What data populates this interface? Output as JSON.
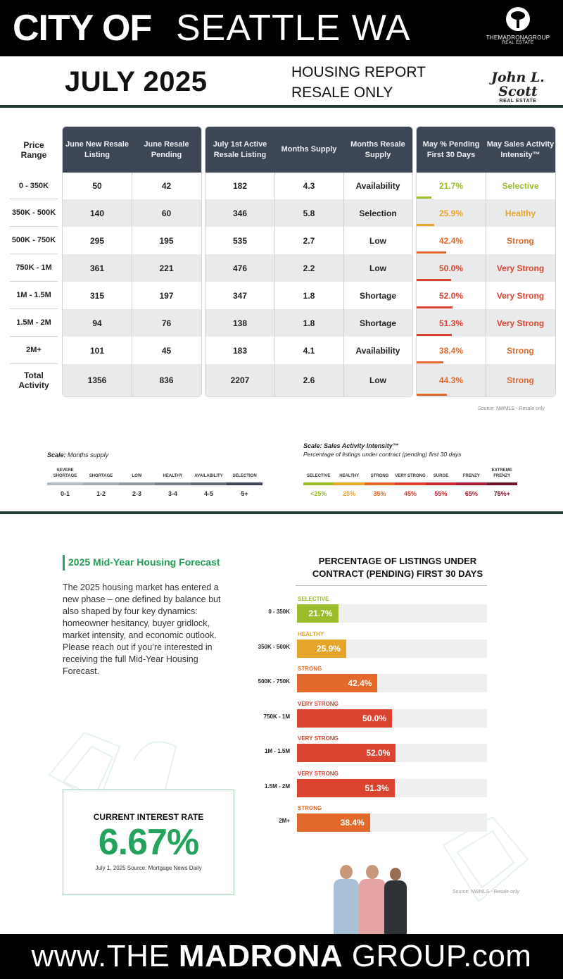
{
  "header": {
    "city_bold": "CITY OF",
    "city_rest": "SEATTLE WA",
    "logo_name": "THEMADRONAGROUP",
    "logo_sub": "REAL ESTATE"
  },
  "subheader": {
    "month": "JULY 2025",
    "report_line1": "HOUSING REPORT",
    "report_line2": "RESALE ONLY",
    "brand": "John L. Scott",
    "brand_sub": "REAL ESTATE"
  },
  "table": {
    "headers": {
      "price": "Price Range",
      "june_new": "June New Resale Listing",
      "june_pending": "June Resale Pending",
      "july_active": "July 1st Active Resale Listing",
      "months_supply": "Months Supply",
      "months_resale": "Months Resale Supply",
      "may_pct": "May % Pending First 30 Days",
      "may_intensity": "May Sales Activity Intensity™"
    },
    "rows": [
      {
        "range": "0 - 350K",
        "june_new": "50",
        "june_pending": "42",
        "july_active": "182",
        "months": "4.3",
        "resale": "Availability",
        "pct": "21.7%",
        "intensity": "Selective",
        "color": "#9bbd2b",
        "barfrac": 0.217
      },
      {
        "range": "350K - 500K",
        "june_new": "140",
        "june_pending": "60",
        "july_active": "346",
        "months": "5.8",
        "resale": "Selection",
        "pct": "25.9%",
        "intensity": "Healthy",
        "color": "#e5a52b",
        "barfrac": 0.259
      },
      {
        "range": "500K - 750K",
        "june_new": "295",
        "june_pending": "195",
        "july_active": "535",
        "months": "2.7",
        "resale": "Low",
        "pct": "42.4%",
        "intensity": "Strong",
        "color": "#e2692a",
        "barfrac": 0.424
      },
      {
        "range": "750K - 1M",
        "june_new": "361",
        "june_pending": "221",
        "july_active": "476",
        "months": "2.2",
        "resale": "Low",
        "pct": "50.0%",
        "intensity": "Very Strong",
        "color": "#d9432f",
        "barfrac": 0.5
      },
      {
        "range": "1M - 1.5M",
        "june_new": "315",
        "june_pending": "197",
        "july_active": "347",
        "months": "1.8",
        "resale": "Shortage",
        "pct": "52.0%",
        "intensity": "Very Strong",
        "color": "#d9432f",
        "barfrac": 0.52
      },
      {
        "range": "1.5M - 2M",
        "june_new": "94",
        "june_pending": "76",
        "july_active": "138",
        "months": "1.8",
        "resale": "Shortage",
        "pct": "51.3%",
        "intensity": "Very Strong",
        "color": "#d9432f",
        "barfrac": 0.513
      },
      {
        "range": "2M+",
        "june_new": "101",
        "june_pending": "45",
        "july_active": "183",
        "months": "4.1",
        "resale": "Availability",
        "pct": "38.4%",
        "intensity": "Strong",
        "color": "#e2692a",
        "barfrac": 0.384
      },
      {
        "range": "Total Activity",
        "june_new": "1356",
        "june_pending": "836",
        "july_active": "2207",
        "months": "2.6",
        "resale": "Low",
        "pct": "44.3%",
        "intensity": "Strong",
        "color": "#e2692a",
        "barfrac": 0.443
      }
    ],
    "source": "Source: NWMLS - Resale only"
  },
  "scale_supply": {
    "title_bold": "Scale:",
    "title_rest": "Months supply",
    "items": [
      {
        "label": "SEVERE SHORTAGE",
        "value": "0-1",
        "color": "#b5bcc4"
      },
      {
        "label": "SHORTAGE",
        "value": "1-2",
        "color": "#a3aab2"
      },
      {
        "label": "LOW",
        "value": "2-3",
        "color": "#8f96a0"
      },
      {
        "label": "HEALTHY",
        "value": "3-4",
        "color": "#78808b"
      },
      {
        "label": "AVAILABILITY",
        "value": "4-5",
        "color": "#5f6874"
      },
      {
        "label": "SELECTION",
        "value": "5+",
        "color": "#3c4654"
      }
    ]
  },
  "scale_intensity": {
    "title_bold": "Scale:",
    "title_rest": "Sales Activity Intensity™",
    "subtitle": "Percentage of listings under contract (pending) first 30 days",
    "items": [
      {
        "label": "SELECTIVE",
        "value": "<25%",
        "color": "#9bbd2b"
      },
      {
        "label": "HEALTHY",
        "value": "25%",
        "color": "#e5a52b"
      },
      {
        "label": "STRONG",
        "value": "35%",
        "color": "#e2692a"
      },
      {
        "label": "VERY STRONG",
        "value": "45%",
        "color": "#d9432f"
      },
      {
        "label": "SURGE",
        "value": "55%",
        "color": "#c52c34"
      },
      {
        "label": "FRENZY",
        "value": "65%",
        "color": "#a51e34"
      },
      {
        "label": "EXTREME FRENZY",
        "value": "75%+",
        "color": "#6e1426"
      }
    ]
  },
  "forecast": {
    "heading": "2025 Mid-Year Housing Forecast",
    "body": "The 2025 housing market has entered a new phase – one defined by balance but also shaped by four key dynamics: homeowner hesitancy, buyer gridlock, market intensity, and economic outlook. Please reach out if you’re interested in receiving the full Mid-Year Housing Forecast."
  },
  "interest": {
    "label": "CURRENT INTEREST RATE",
    "value": "6.67%",
    "source": "July 1, 2025 Source: Mortgage News Daily"
  },
  "chart_data": {
    "type": "bar",
    "title": "PERCENTAGE OF LISTINGS UNDER CONTRACT (PENDING) FIRST 30 DAYS",
    "categories": [
      "0 - 350K",
      "350K - 500K",
      "500K - 750K",
      "750K - 1M",
      "1M - 1.5M",
      "1.5M - 2M",
      "2M+"
    ],
    "values": [
      21.7,
      25.9,
      42.4,
      50.0,
      52.0,
      51.3,
      38.4
    ],
    "value_labels": [
      "21.7%",
      "25.9%",
      "42.4%",
      "50.0%",
      "52.0%",
      "51.3%",
      "38.4%"
    ],
    "bar_labels": [
      "SELECTIVE",
      "HEALTHY",
      "STRONG",
      "VERY STRONG",
      "VERY STRONG",
      "VERY STRONG",
      "STRONG"
    ],
    "colors": [
      "#9bbd2b",
      "#e5a52b",
      "#e2692a",
      "#d9432f",
      "#d9432f",
      "#d9432f",
      "#e2692a"
    ],
    "xlim": [
      0,
      100
    ],
    "orientation": "horizontal",
    "source": "Source: NWMLS - Resale only"
  },
  "footer": {
    "pre": "www.THE ",
    "bold": "MADRONA",
    "post": " GROUP.com"
  }
}
